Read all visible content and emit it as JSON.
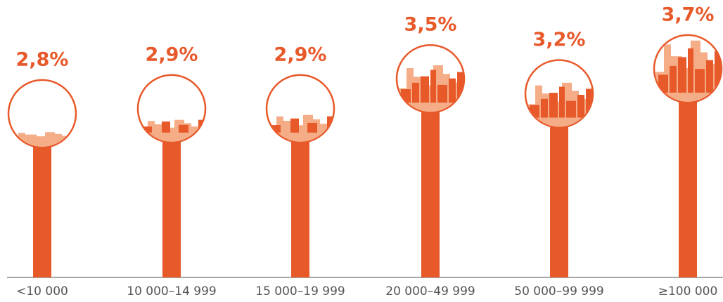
{
  "chart_data": {
    "type": "lollipop",
    "categories": [
      "<10 000",
      "10 000–14 999",
      "15 000–19 999",
      "20 000–49 999",
      "50 000–99 999",
      "≥100 000"
    ],
    "values": [
      2.8,
      2.9,
      2.9,
      3.5,
      3.2,
      3.7
    ],
    "value_labels": [
      "2,8%",
      "2,9%",
      "2,9%",
      "3,5%",
      "3,2%",
      "3,7%"
    ],
    "color": "#e8592a",
    "light_color": "#f5ad88"
  }
}
